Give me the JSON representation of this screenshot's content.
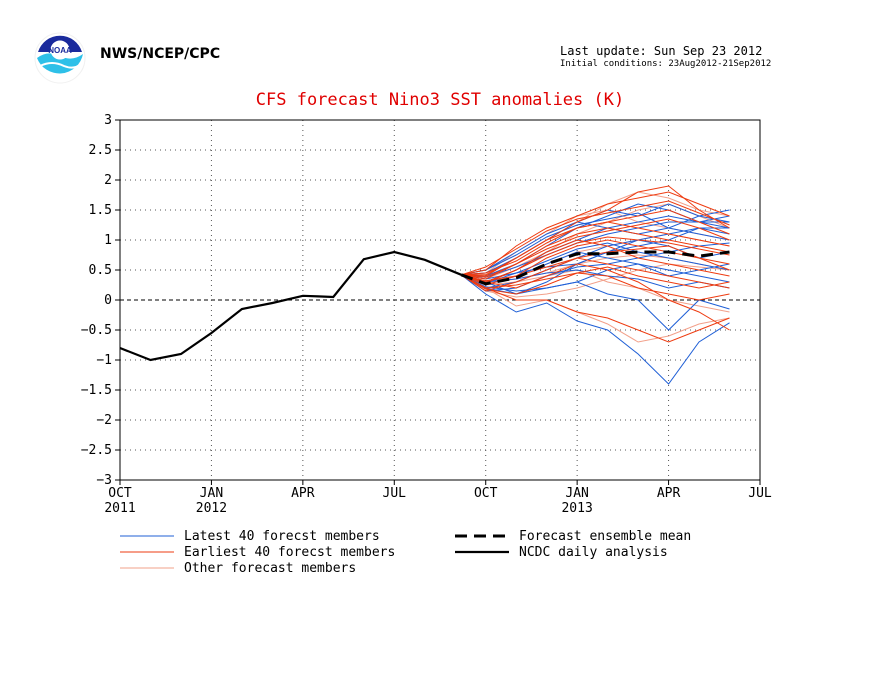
{
  "header": {
    "agency": "NWS/NCEP/CPC",
    "last_update": "Last update: Sun Sep 23 2012",
    "initial_conditions": "Initial conditions: 23Aug2012-21Sep2012",
    "logo_icon": "noaa-logo"
  },
  "colors": {
    "latest": "#1f5fd6",
    "earliest": "#ee3b10",
    "other": "#f2a08a",
    "title": "#e00000"
  },
  "chart_data": {
    "type": "line",
    "title": "CFS forecast Nino3 SST anomalies (K)",
    "ylim": [
      -3,
      3
    ],
    "yticks": [
      3,
      2.5,
      2,
      1.5,
      1,
      0.5,
      0,
      -0.5,
      -1,
      -1.5,
      -2,
      -2.5,
      -3
    ],
    "xticks": [
      {
        "x": 0,
        "label": "OCT",
        "year": "2011"
      },
      {
        "x": 3,
        "label": "JAN",
        "year": "2012"
      },
      {
        "x": 6,
        "label": "APR",
        "year": ""
      },
      {
        "x": 9,
        "label": "JUL",
        "year": ""
      },
      {
        "x": 12,
        "label": "OCT",
        "year": ""
      },
      {
        "x": 15,
        "label": "JAN",
        "year": "2013"
      },
      {
        "x": 18,
        "label": "APR",
        "year": ""
      },
      {
        "x": 21,
        "label": "JUL",
        "year": ""
      }
    ],
    "grid": true,
    "zero_line": true,
    "observed": {
      "name": "NCDC daily analysis",
      "x": [
        0,
        1,
        2,
        3,
        4,
        5,
        6,
        6.5,
        7,
        8,
        9,
        10,
        11.2
      ],
      "y": [
        -0.8,
        -1.0,
        -0.9,
        -0.55,
        -0.15,
        -0.05,
        0.07,
        0.06,
        0.05,
        0.68,
        0.8,
        0.67,
        0.42
      ]
    },
    "ensemble_mean": {
      "name": "Forecast ensemble mean",
      "x": [
        11.2,
        12,
        13,
        14,
        15,
        16,
        17,
        18,
        19,
        20
      ],
      "y": [
        0.42,
        0.27,
        0.37,
        0.6,
        0.77,
        0.77,
        0.8,
        0.8,
        0.73,
        0.8
      ]
    },
    "members": {
      "x": [
        11.2,
        12,
        13,
        14,
        15,
        16,
        17,
        18,
        19,
        20
      ],
      "latest": [
        [
          0.42,
          0.1,
          -0.2,
          -0.05,
          -0.35,
          -0.5,
          -0.9,
          -1.4,
          -0.7,
          -0.38
        ],
        [
          0.42,
          0.3,
          0.1,
          0.2,
          0.3,
          0.1,
          0.0,
          -0.5,
          0.0,
          -0.15
        ],
        [
          0.42,
          0.4,
          0.6,
          0.9,
          1.2,
          1.4,
          1.6,
          1.5,
          1.3,
          1.4
        ],
        [
          0.42,
          0.5,
          0.8,
          1.1,
          1.3,
          1.5,
          1.4,
          1.6,
          1.4,
          1.5
        ],
        [
          0.42,
          0.3,
          0.5,
          0.8,
          1.0,
          1.2,
          1.3,
          1.4,
          1.3,
          1.3
        ],
        [
          0.42,
          0.2,
          0.3,
          0.5,
          0.7,
          0.9,
          1.0,
          1.1,
          1.2,
          1.2
        ],
        [
          0.42,
          0.25,
          0.4,
          0.6,
          0.8,
          0.7,
          0.6,
          0.5,
          0.4,
          0.3
        ],
        [
          0.42,
          0.35,
          0.45,
          0.55,
          0.6,
          0.8,
          0.9,
          1.0,
          1.2,
          1.1
        ],
        [
          0.42,
          0.15,
          0.2,
          0.4,
          0.55,
          0.6,
          0.7,
          0.8,
          0.9,
          0.95
        ],
        [
          0.42,
          0.45,
          0.7,
          1.0,
          1.3,
          1.2,
          1.1,
          1.2,
          1.4,
          1.3
        ],
        [
          0.42,
          0.3,
          0.35,
          0.45,
          0.5,
          0.4,
          0.35,
          0.2,
          0.3,
          0.2
        ],
        [
          0.42,
          0.2,
          0.1,
          0.3,
          0.6,
          0.8,
          1.0,
          0.9,
          0.7,
          0.8
        ],
        [
          0.42,
          0.38,
          0.55,
          0.75,
          0.95,
          1.1,
          1.2,
          1.3,
          1.3,
          1.2
        ],
        [
          0.42,
          0.28,
          0.45,
          0.65,
          0.85,
          0.95,
          0.8,
          0.7,
          0.6,
          0.5
        ],
        [
          0.42,
          0.22,
          0.15,
          0.2,
          0.3,
          0.5,
          0.6,
          0.4,
          0.5,
          0.6
        ],
        [
          0.42,
          0.5,
          0.75,
          1.05,
          1.25,
          1.35,
          1.45,
          1.2,
          1.1,
          1.0
        ]
      ],
      "earliest": [
        [
          0.42,
          0.4,
          0.7,
          1.0,
          1.3,
          1.5,
          1.8,
          1.9,
          1.5,
          1.2
        ],
        [
          0.42,
          0.5,
          0.9,
          1.2,
          1.4,
          1.6,
          1.7,
          1.8,
          1.6,
          1.4
        ],
        [
          0.42,
          0.3,
          0.2,
          0.4,
          0.6,
          0.5,
          0.3,
          0.0,
          -0.2,
          -0.5
        ],
        [
          0.42,
          0.2,
          0.0,
          0.0,
          -0.2,
          -0.3,
          -0.5,
          -0.7,
          -0.5,
          -0.3
        ],
        [
          0.42,
          0.35,
          0.6,
          0.9,
          1.1,
          1.2,
          1.1,
          1.0,
          0.9,
          0.8
        ],
        [
          0.42,
          0.45,
          0.65,
          0.95,
          1.2,
          1.3,
          1.4,
          1.5,
          1.3,
          1.1
        ],
        [
          0.42,
          0.25,
          0.4,
          0.7,
          0.9,
          1.0,
          0.9,
          0.8,
          0.7,
          0.6
        ],
        [
          0.42,
          0.3,
          0.5,
          0.8,
          1.0,
          0.9,
          0.7,
          0.6,
          0.5,
          0.4
        ],
        [
          0.42,
          0.15,
          0.3,
          0.5,
          0.7,
          0.8,
          0.85,
          0.9,
          0.7,
          0.5
        ],
        [
          0.42,
          0.55,
          0.85,
          1.15,
          1.35,
          1.45,
          1.55,
          1.65,
          1.45,
          1.25
        ],
        [
          0.42,
          0.32,
          0.4,
          0.55,
          0.7,
          0.6,
          0.5,
          0.4,
          0.3,
          0.2
        ],
        [
          0.42,
          0.38,
          0.6,
          0.85,
          1.05,
          1.15,
          1.25,
          1.35,
          1.2,
          1.0
        ],
        [
          0.42,
          0.2,
          0.25,
          0.35,
          0.45,
          0.4,
          0.2,
          0.1,
          0.0,
          0.1
        ],
        [
          0.42,
          0.28,
          0.5,
          0.75,
          0.95,
          1.05,
          1.0,
          0.95,
          0.85,
          0.75
        ],
        [
          0.42,
          0.42,
          0.7,
          1.0,
          1.2,
          1.3,
          1.2,
          1.1,
          1.0,
          0.9
        ],
        [
          0.42,
          0.18,
          0.1,
          0.25,
          0.45,
          0.55,
          0.4,
          0.3,
          0.2,
          0.3
        ]
      ],
      "other": [
        [
          0.42,
          0.2,
          -0.1,
          0.0,
          -0.2,
          -0.4,
          -0.7,
          -0.6,
          -0.4,
          -0.3
        ],
        [
          0.42,
          0.4,
          0.7,
          1.0,
          1.3,
          1.6,
          1.8,
          1.7,
          1.5,
          1.4
        ],
        [
          0.42,
          0.3,
          0.4,
          0.6,
          0.8,
          0.9,
          1.0,
          1.1,
          1.0,
          0.9
        ],
        [
          0.42,
          0.25,
          0.3,
          0.4,
          0.5,
          0.3,
          0.2,
          0.0,
          -0.1,
          -0.2
        ],
        [
          0.42,
          0.35,
          0.55,
          0.8,
          1.1,
          1.3,
          1.5,
          1.6,
          1.4,
          1.2
        ],
        [
          0.42,
          0.15,
          0.05,
          0.1,
          0.2,
          0.35,
          0.5,
          0.6,
          0.55,
          0.5
        ],
        [
          0.42,
          0.45,
          0.8,
          1.1,
          1.4,
          1.5,
          1.3,
          1.2,
          1.1,
          1.0
        ],
        [
          0.42,
          0.28,
          0.35,
          0.45,
          0.6,
          0.7,
          0.75,
          0.7,
          0.6,
          0.5
        ]
      ]
    },
    "legend": {
      "placement": "below-left",
      "entries": {
        "latest": "Latest 40 forecst members",
        "earliest": "Earliest 40 forecst members",
        "other": "Other forecast members",
        "mean": "Forecast ensemble mean",
        "ncdc": "NCDC daily analysis"
      }
    }
  }
}
